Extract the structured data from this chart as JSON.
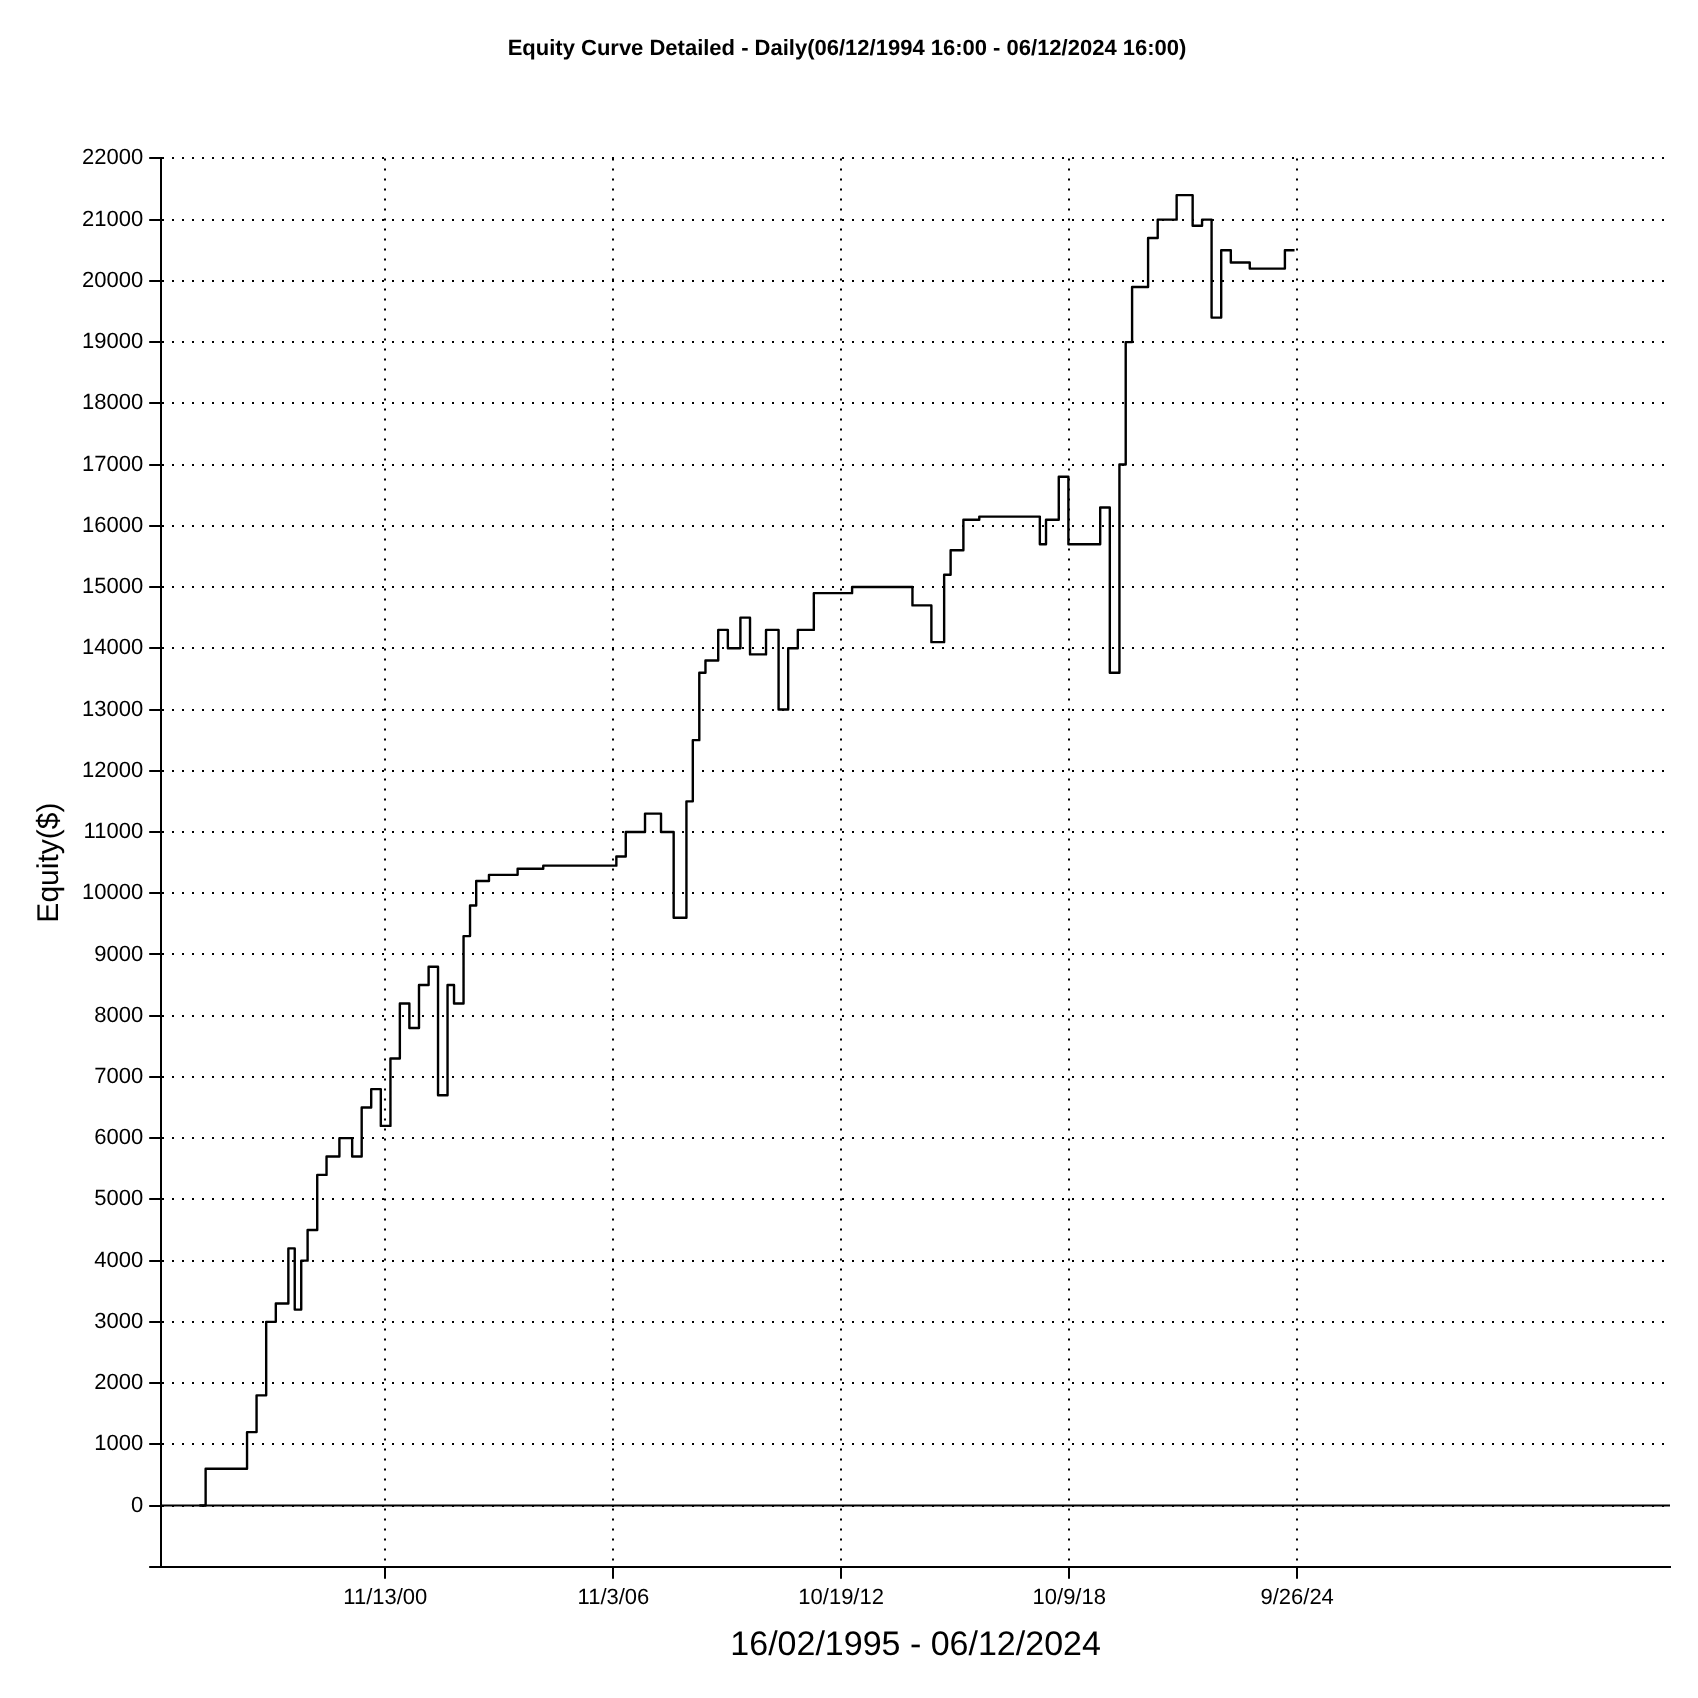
{
  "chart_data": {
    "type": "step",
    "title": "Equity Curve Detailed - Daily(06/12/1994 16:00 - 06/12/2024 16:00)",
    "xlabel": "16/02/1995 - 06/12/2024",
    "ylabel": "Equity($)",
    "x": [
      "1996-01",
      "1996-03",
      "1996-04",
      "1997-04",
      "1997-07",
      "1997-10",
      "1998-01",
      "1998-05",
      "1998-07",
      "1998-09",
      "1998-11",
      "1999-02",
      "1999-05",
      "1999-09",
      "2000-01",
      "2000-04",
      "2000-07",
      "2000-10",
      "2001-01",
      "2001-04",
      "2001-07",
      "2001-10",
      "2002-01",
      "2002-04",
      "2002-07",
      "2002-09",
      "2002-12",
      "2003-02",
      "2003-04",
      "2003-08",
      "2004-05",
      "2005-01",
      "2006-12",
      "2007-03",
      "2007-09",
      "2008-02",
      "2008-06",
      "2008-10",
      "2008-12",
      "2009-02",
      "2009-04",
      "2009-08",
      "2009-11",
      "2010-03",
      "2010-06",
      "2010-11",
      "2011-03",
      "2011-06",
      "2011-09",
      "2012-02",
      "2012-06",
      "2013-02",
      "2013-08",
      "2014-09",
      "2015-03",
      "2015-07",
      "2015-09",
      "2016-01",
      "2016-06",
      "2017-04",
      "2018-01",
      "2018-03",
      "2018-07",
      "2018-10",
      "2018-12",
      "2019-08",
      "2019-11",
      "2020-02",
      "2020-04",
      "2020-06",
      "2020-11",
      "2021-02",
      "2021-08",
      "2022-01",
      "2022-04",
      "2022-07",
      "2022-10",
      "2023-01",
      "2023-07",
      "2023-11",
      "2024-06",
      "2024-09"
    ],
    "series": [
      {
        "color": "#000000",
        "values": [
          0,
          0,
          600,
          600,
          1200,
          1800,
          3000,
          3300,
          4200,
          3200,
          4000,
          4500,
          5400,
          5700,
          6000,
          5700,
          6500,
          6800,
          6200,
          7300,
          8200,
          7800,
          8500,
          8800,
          6700,
          8500,
          8200,
          9300,
          9800,
          10200,
          10300,
          10400,
          10450,
          10600,
          11000,
          11300,
          11000,
          9600,
          11500,
          12500,
          13600,
          13800,
          14300,
          14000,
          14500,
          13900,
          14300,
          13000,
          14000,
          14300,
          14900,
          14900,
          15000,
          15000,
          14700,
          14100,
          15200,
          15600,
          16100,
          16150,
          16150,
          15700,
          16100,
          16800,
          15700,
          15700,
          16300,
          13600,
          17000,
          19000,
          19900,
          20700,
          21000,
          21400,
          20900,
          21000,
          19400,
          20500,
          20300,
          20200,
          20200,
          20500
        ]
      }
    ],
    "xlim": [
      "1995-01",
      "2034-07"
    ],
    "xticks": [
      {
        "value": "2000-11-13",
        "label": "11/13/00"
      },
      {
        "value": "2006-11-03",
        "label": "11/3/06"
      },
      {
        "value": "2012-10-19",
        "label": "10/19/12"
      },
      {
        "value": "2018-10-09",
        "label": "10/9/18"
      },
      {
        "value": "2024-09-26",
        "label": "9/26/24"
      }
    ],
    "ylim": [
      -1000,
      22000
    ],
    "yticks": [
      {
        "value": -1000,
        "label": null
      },
      0,
      1000,
      2000,
      3000,
      4000,
      5000,
      6000,
      7000,
      8000,
      9000,
      10000,
      11000,
      12000,
      13000,
      14000,
      15000,
      16000,
      17000,
      18000,
      19000,
      20000,
      21000,
      22000
    ],
    "ref_lines": [
      {
        "axis": "y",
        "value": 0,
        "color": "#000000",
        "line_style": "solid"
      }
    ],
    "grid": true,
    "legend": false,
    "marker": "none",
    "line_style": "solid"
  }
}
